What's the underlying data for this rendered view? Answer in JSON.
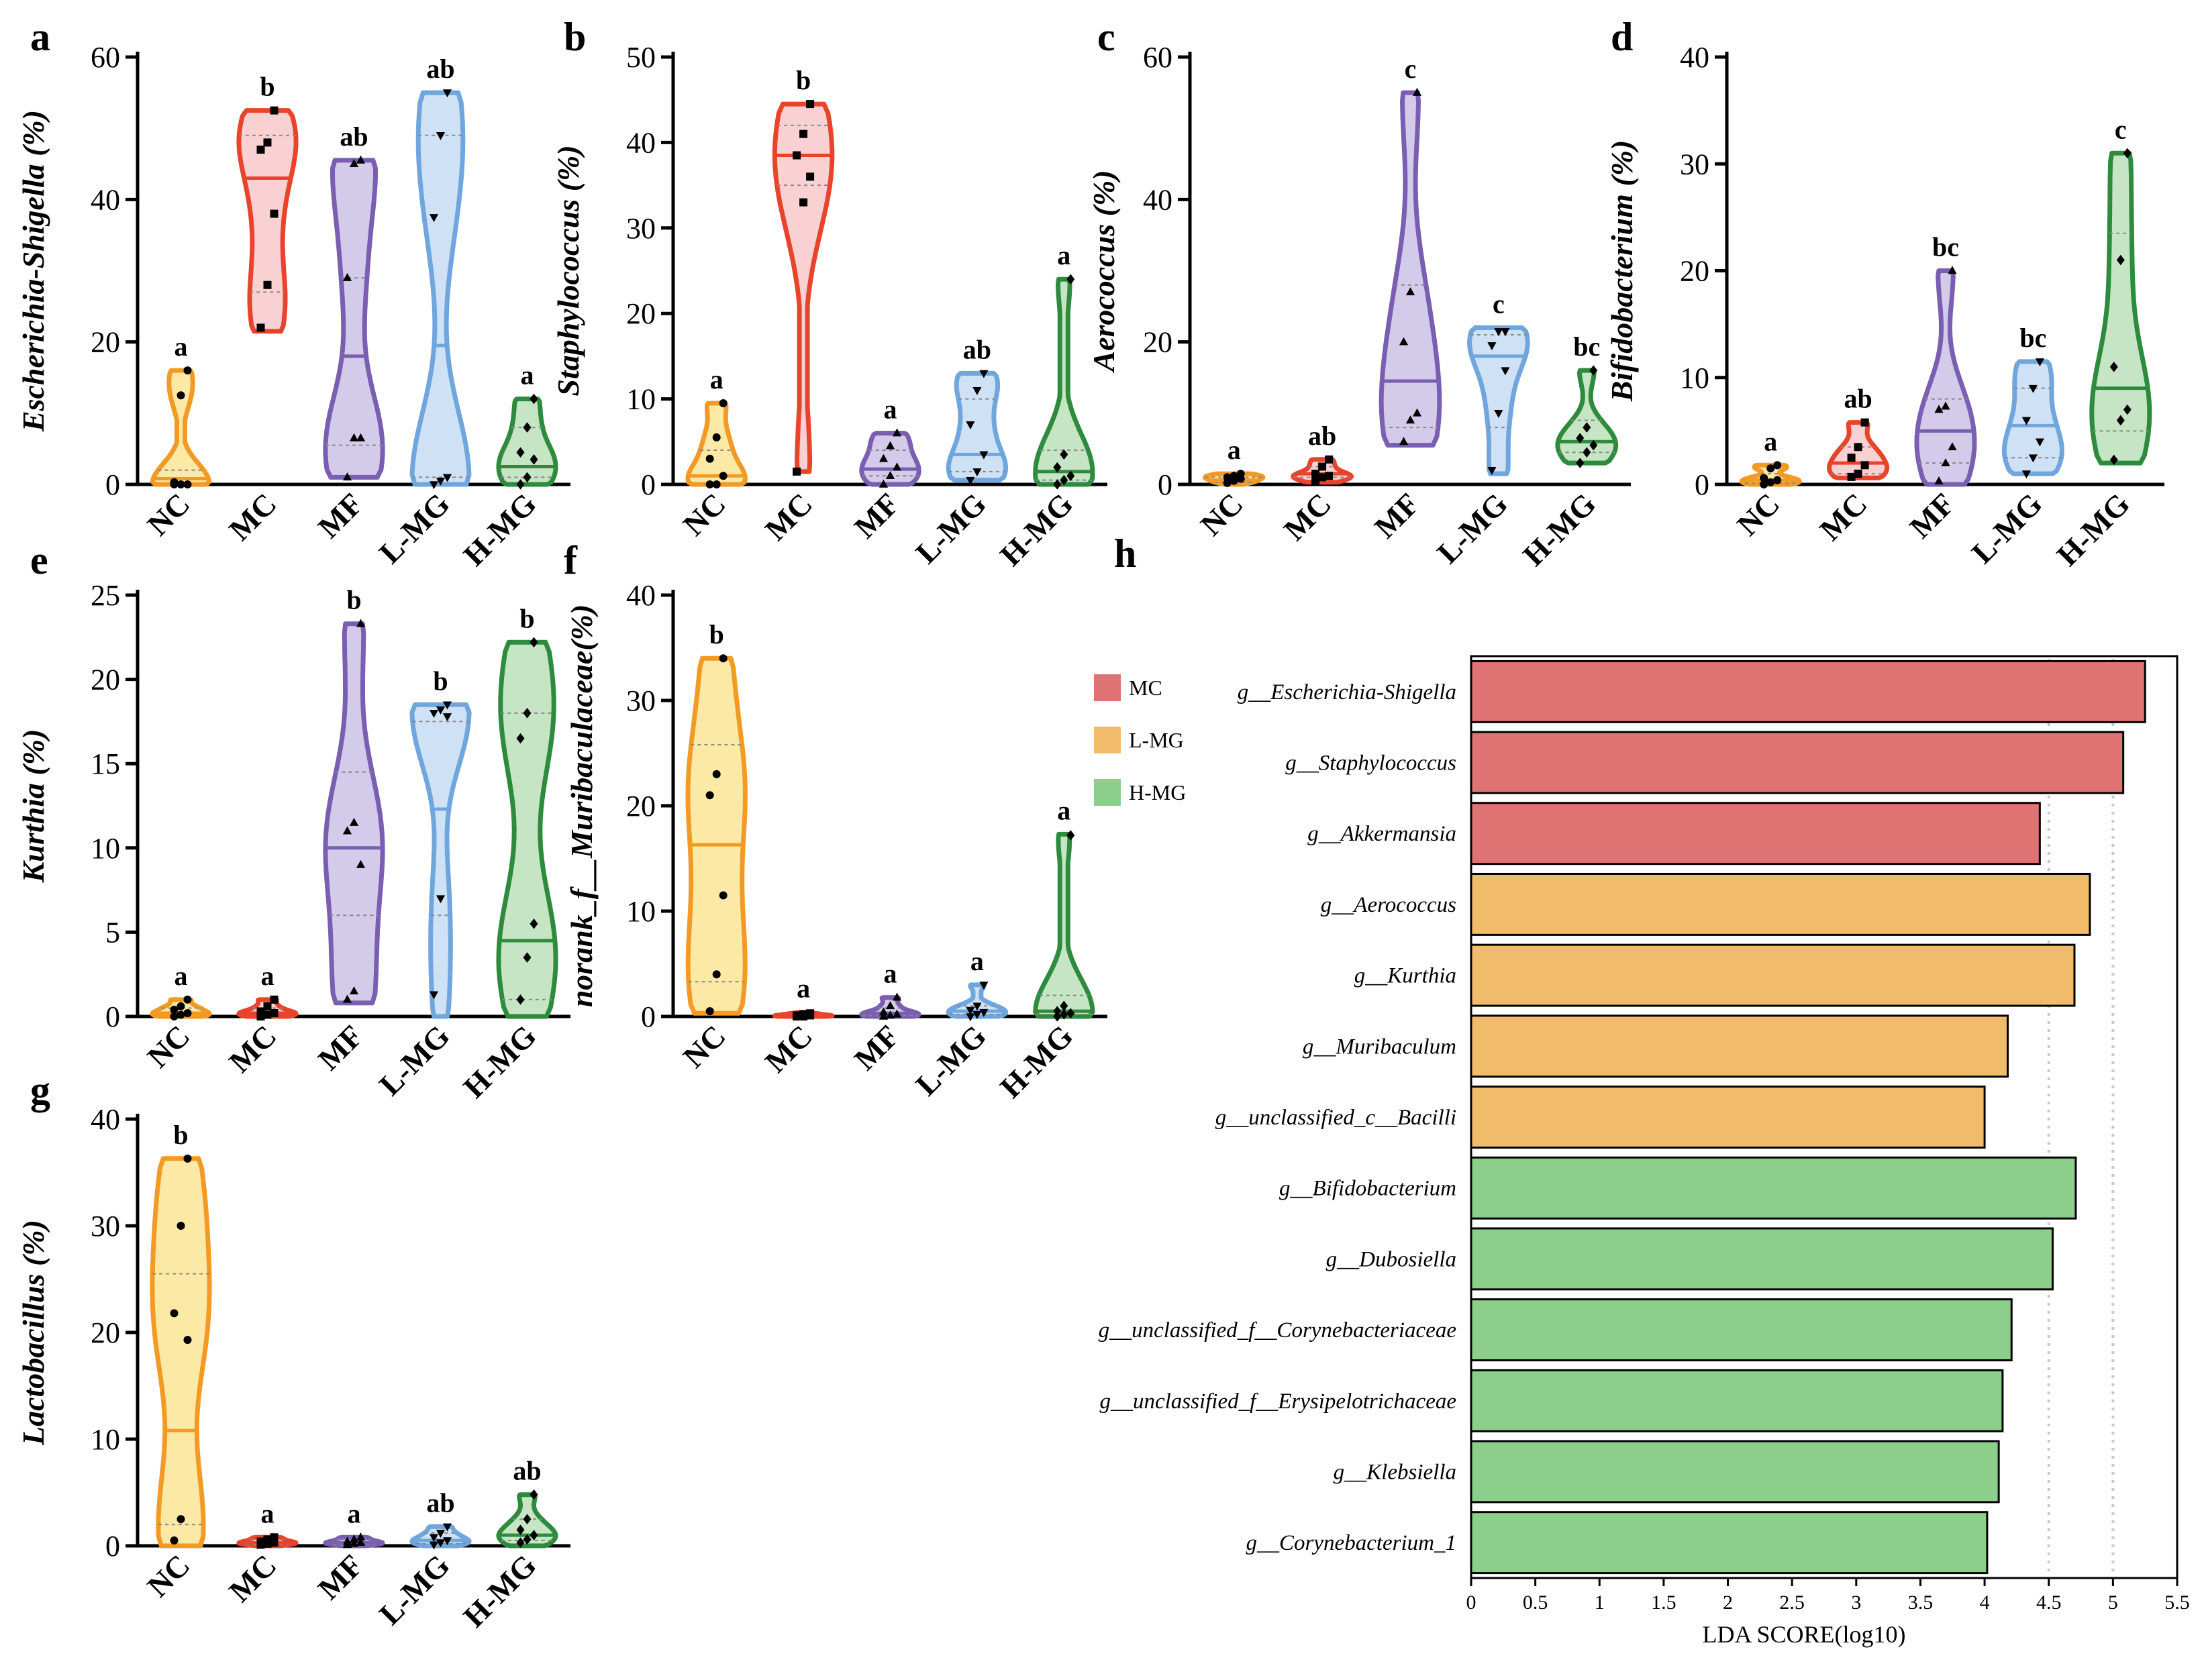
{
  "groups": [
    "NC",
    "MC",
    "MF",
    "L-MG",
    "H-MG"
  ],
  "colors": {
    "NC": {
      "stroke": "#f39a25",
      "fill": "#fde9a6"
    },
    "MC": {
      "stroke": "#e8442c",
      "fill": "#fad1d3"
    },
    "MF": {
      "stroke": "#7a5eb1",
      "fill": "#d4cbea"
    },
    "L-MG": {
      "stroke": "#6fa6dd",
      "fill": "#cfe1f4"
    },
    "H-MG": {
      "stroke": "#2e8b3e",
      "fill": "#c6e5c4"
    }
  },
  "chart_data": [
    {
      "panel": "a",
      "type": "violin",
      "ylabel": "Escherichia-Shigella (%)",
      "ylim": [
        0,
        60
      ],
      "yticks": [
        0,
        20,
        40,
        60
      ],
      "categories": [
        "NC",
        "MC",
        "MF",
        "L-MG",
        "H-MG"
      ],
      "series": [
        {
          "group": "NC",
          "min": 0,
          "max": 16,
          "median": 0.8,
          "q1": 0,
          "q3": 2,
          "points": [
            0,
            0,
            0,
            0.3,
            12.5,
            16
          ],
          "letter": "a"
        },
        {
          "group": "MC",
          "min": 21.5,
          "max": 52.5,
          "median": 43,
          "q1": 27,
          "q3": 49,
          "points": [
            22,
            28,
            38,
            47,
            48,
            52.5
          ],
          "letter": "b"
        },
        {
          "group": "MF",
          "min": 1,
          "max": 45.5,
          "median": 18,
          "q1": 5.5,
          "q3": 29,
          "points": [
            1,
            6.5,
            6.5,
            29,
            45,
            45.5
          ],
          "letter": "ab"
        },
        {
          "group": "L-MG",
          "min": 0,
          "max": 55,
          "median": 19.5,
          "q1": 1,
          "q3": 49,
          "points": [
            0,
            0.5,
            1,
            37.5,
            49,
            55
          ],
          "letter": "ab"
        },
        {
          "group": "H-MG",
          "min": 0,
          "max": 12,
          "median": 2.5,
          "q1": 1,
          "q3": 8,
          "points": [
            0,
            1,
            3.5,
            4.5,
            8,
            12
          ],
          "letter": "a"
        }
      ]
    },
    {
      "panel": "b",
      "type": "violin",
      "ylabel": "Staphylococcus (%)",
      "ylim": [
        0,
        50
      ],
      "yticks": [
        0,
        10,
        20,
        30,
        40,
        50
      ],
      "categories": [
        "NC",
        "MC",
        "MF",
        "L-MG",
        "H-MG"
      ],
      "series": [
        {
          "group": "NC",
          "min": 0,
          "max": 9.5,
          "median": 1,
          "q1": 0,
          "q3": 4,
          "points": [
            0,
            0,
            1,
            3,
            5.5,
            9.5
          ],
          "letter": "a"
        },
        {
          "group": "MC",
          "min": 1.5,
          "max": 44.5,
          "median": 38.5,
          "q1": 35,
          "q3": 42,
          "points": [
            1.5,
            33,
            36,
            38.5,
            41,
            44.5
          ],
          "letter": "b"
        },
        {
          "group": "MF",
          "min": 0,
          "max": 6,
          "median": 1.8,
          "q1": 1,
          "q3": 4,
          "points": [
            0,
            1,
            2,
            3,
            4.5,
            6
          ],
          "letter": "a"
        },
        {
          "group": "L-MG",
          "min": 0.5,
          "max": 13,
          "median": 3.5,
          "q1": 1.5,
          "q3": 10,
          "points": [
            0.5,
            1.5,
            3.5,
            7,
            11,
            13
          ],
          "letter": "ab"
        },
        {
          "group": "H-MG",
          "min": 0,
          "max": 24,
          "median": 1.5,
          "q1": 0.5,
          "q3": 4,
          "points": [
            0,
            0.5,
            1,
            2,
            3.5,
            24
          ],
          "letter": "a"
        }
      ]
    },
    {
      "panel": "c",
      "type": "violin",
      "ylabel": "Aerococcus (%)",
      "ylim": [
        0,
        60
      ],
      "yticks": [
        0,
        20,
        40,
        60
      ],
      "categories": [
        "NC",
        "MC",
        "MF",
        "L-MG",
        "H-MG"
      ],
      "series": [
        {
          "group": "NC",
          "min": 0,
          "max": 1.5,
          "median": 0.6,
          "q1": 0.3,
          "q3": 1,
          "points": [
            0.2,
            0.5,
            0.8,
            1,
            1.2,
            1.5
          ],
          "letter": "a"
        },
        {
          "group": "MC",
          "min": 0.3,
          "max": 3.5,
          "median": 1.5,
          "q1": 1,
          "q3": 2.5,
          "points": [
            0.5,
            1,
            1.2,
            1.5,
            2.5,
            3.5
          ],
          "letter": "ab"
        },
        {
          "group": "MF",
          "min": 5.5,
          "max": 55,
          "median": 14.5,
          "q1": 8,
          "q3": 28,
          "points": [
            6,
            9,
            10,
            20,
            27,
            55
          ],
          "letter": "c"
        },
        {
          "group": "L-MG",
          "min": 1.5,
          "max": 22,
          "median": 18,
          "q1": 8,
          "q3": 21,
          "points": [
            2,
            10,
            16,
            19.5,
            21.5,
            21.5
          ],
          "letter": "c"
        },
        {
          "group": "H-MG",
          "min": 3,
          "max": 16,
          "median": 6,
          "q1": 4.5,
          "q3": 9,
          "points": [
            3,
            4.5,
            5.5,
            6.5,
            8,
            16
          ],
          "letter": "bc"
        }
      ]
    },
    {
      "panel": "d",
      "type": "violin",
      "ylabel": "Bifidobacterium (%)",
      "ylim": [
        0,
        40
      ],
      "yticks": [
        0,
        10,
        20,
        30,
        40
      ],
      "categories": [
        "NC",
        "MC",
        "MF",
        "L-MG",
        "H-MG"
      ],
      "series": [
        {
          "group": "NC",
          "min": 0,
          "max": 1.8,
          "median": 0.4,
          "q1": 0.1,
          "q3": 1,
          "points": [
            0,
            0.2,
            0.4,
            0.6,
            1.5,
            1.8
          ],
          "letter": "a"
        },
        {
          "group": "MC",
          "min": 0.6,
          "max": 5.8,
          "median": 2,
          "q1": 1,
          "q3": 3.5,
          "points": [
            0.7,
            1,
            1.8,
            2.5,
            3.5,
            5.8
          ],
          "letter": "ab"
        },
        {
          "group": "MF",
          "min": 0,
          "max": 20,
          "median": 5,
          "q1": 2,
          "q3": 8,
          "points": [
            0.3,
            2,
            3.5,
            7,
            7.3,
            20
          ],
          "letter": "bc"
        },
        {
          "group": "L-MG",
          "min": 1,
          "max": 11.5,
          "median": 5.5,
          "q1": 2.5,
          "q3": 9,
          "points": [
            1,
            2.5,
            4,
            6,
            9,
            11.5
          ],
          "letter": "bc"
        },
        {
          "group": "H-MG",
          "min": 2,
          "max": 31,
          "median": 9,
          "q1": 5,
          "q3": 23.5,
          "points": [
            2.3,
            6,
            7,
            11,
            21,
            31
          ],
          "letter": "c"
        }
      ]
    },
    {
      "panel": "e",
      "type": "violin",
      "ylabel": "Kurthia (%)",
      "ylim": [
        0,
        25
      ],
      "yticks": [
        0,
        5,
        10,
        15,
        20,
        25
      ],
      "categories": [
        "NC",
        "MC",
        "MF",
        "L-MG",
        "H-MG"
      ],
      "series": [
        {
          "group": "NC",
          "min": 0,
          "max": 1,
          "median": 0.2,
          "q1": 0,
          "q3": 0.5,
          "points": [
            0,
            0.1,
            0.2,
            0.4,
            0.6,
            1
          ],
          "letter": "a"
        },
        {
          "group": "MC",
          "min": 0,
          "max": 1,
          "median": 0.2,
          "q1": 0,
          "q3": 0.5,
          "points": [
            0,
            0.1,
            0.2,
            0.3,
            0.6,
            1
          ],
          "letter": "a"
        },
        {
          "group": "MF",
          "min": 0.8,
          "max": 23.3,
          "median": 10,
          "q1": 6,
          "q3": 14.5,
          "points": [
            1,
            1.5,
            9,
            11,
            11.5,
            23.3
          ],
          "letter": "b"
        },
        {
          "group": "L-MG",
          "min": 0,
          "max": 18.5,
          "median": 12.3,
          "q1": 6,
          "q3": 17.5,
          "points": [
            1.3,
            7,
            17.8,
            18,
            18.2,
            18.5
          ],
          "letter": "b"
        },
        {
          "group": "H-MG",
          "min": 0,
          "max": 22.2,
          "median": 4.5,
          "q1": 1,
          "q3": 18,
          "points": [
            1,
            3.5,
            5.5,
            16.5,
            18,
            22.2
          ],
          "letter": "b"
        }
      ]
    },
    {
      "panel": "f",
      "type": "violin",
      "ylabel": "norank_f__Muribaculaceae(%)",
      "ylim": [
        0,
        40
      ],
      "yticks": [
        0,
        10,
        20,
        30,
        40
      ],
      "categories": [
        "NC",
        "MC",
        "MF",
        "L-MG",
        "H-MG"
      ],
      "series": [
        {
          "group": "NC",
          "min": 0.3,
          "max": 34,
          "median": 16.3,
          "q1": 3.3,
          "q3": 25.8,
          "points": [
            0.5,
            4,
            11.5,
            21,
            23,
            34
          ],
          "letter": "b"
        },
        {
          "group": "MC",
          "min": 0,
          "max": 0.4,
          "median": 0.1,
          "q1": 0,
          "q3": 0.2,
          "points": [
            0,
            0,
            0.1,
            0.1,
            0.2,
            0.3
          ],
          "letter": "a"
        },
        {
          "group": "MF",
          "min": 0,
          "max": 1.8,
          "median": 0.3,
          "q1": 0.1,
          "q3": 0.8,
          "points": [
            0,
            0.1,
            0.2,
            0.4,
            1,
            1.8
          ],
          "letter": "a"
        },
        {
          "group": "L-MG",
          "min": 0,
          "max": 3,
          "median": 0.5,
          "q1": 0.2,
          "q3": 1,
          "points": [
            0,
            0.2,
            0.4,
            0.6,
            1,
            3
          ],
          "letter": "a"
        },
        {
          "group": "H-MG",
          "min": 0,
          "max": 17.3,
          "median": 0.5,
          "q1": 0.2,
          "q3": 2,
          "points": [
            0,
            0.2,
            0.3,
            0.5,
            1,
            17.2
          ],
          "letter": "a"
        }
      ]
    },
    {
      "panel": "g",
      "type": "violin",
      "ylabel": "Lactobacillus (%)",
      "ylim": [
        0,
        40
      ],
      "yticks": [
        0,
        10,
        20,
        30,
        40
      ],
      "categories": [
        "NC",
        "MC",
        "MF",
        "L-MG",
        "H-MG"
      ],
      "series": [
        {
          "group": "NC",
          "min": 0,
          "max": 36.3,
          "median": 10.8,
          "q1": 2,
          "q3": 25.5,
          "points": [
            0.5,
            2.5,
            19.3,
            21.8,
            30,
            36.3
          ],
          "letter": "b"
        },
        {
          "group": "MC",
          "min": 0,
          "max": 0.8,
          "median": 0.3,
          "q1": 0.1,
          "q3": 0.6,
          "points": [
            0.1,
            0.2,
            0.3,
            0.4,
            0.6,
            0.8
          ],
          "letter": "a"
        },
        {
          "group": "MF",
          "min": 0,
          "max": 0.8,
          "median": 0.3,
          "q1": 0.1,
          "q3": 0.6,
          "points": [
            0.1,
            0.2,
            0.3,
            0.4,
            0.6,
            0.8
          ],
          "letter": "a"
        },
        {
          "group": "L-MG",
          "min": 0,
          "max": 1.8,
          "median": 0.5,
          "q1": 0.2,
          "q3": 1.2,
          "points": [
            0.1,
            0.3,
            0.5,
            0.8,
            1.2,
            1.8
          ],
          "letter": "ab"
        },
        {
          "group": "H-MG",
          "min": 0,
          "max": 4.8,
          "median": 1,
          "q1": 0.5,
          "q3": 2.5,
          "points": [
            0.3,
            0.6,
            1,
            1.5,
            2.5,
            4.8
          ],
          "letter": "ab"
        }
      ]
    },
    {
      "panel": "h",
      "type": "bar",
      "orientation": "horizontal",
      "xlabel": "LDA SCORE(log10)",
      "xlim": [
        0,
        5.5
      ],
      "xticks": [
        "0",
        "0.5",
        "1",
        "1.5",
        "2",
        "2.5",
        "3",
        "3.5",
        "4",
        "4.5",
        "5",
        "5.5"
      ],
      "gridlines": [
        4.5,
        5
      ],
      "legend": [
        {
          "label": "MC",
          "color": "#e07374"
        },
        {
          "label": "L-MG",
          "color": "#f1bb6c"
        },
        {
          "label": "H-MG",
          "color": "#8bcf8b"
        }
      ],
      "bars": [
        {
          "label": "g__Escherichia-Shigella",
          "value": 5.25,
          "group": "MC"
        },
        {
          "label": "g__Staphylococcus",
          "value": 5.08,
          "group": "MC"
        },
        {
          "label": "g__Akkermansia",
          "value": 4.43,
          "group": "MC"
        },
        {
          "label": "g__Aerococcus",
          "value": 4.82,
          "group": "L-MG"
        },
        {
          "label": "g__Kurthia",
          "value": 4.7,
          "group": "L-MG"
        },
        {
          "label": "g__Muribaculum",
          "value": 4.18,
          "group": "L-MG"
        },
        {
          "label": "g__unclassified_c__Bacilli",
          "value": 4.0,
          "group": "L-MG"
        },
        {
          "label": "g__Bifidobacterium",
          "value": 4.71,
          "group": "H-MG"
        },
        {
          "label": "g__Dubosiella",
          "value": 4.53,
          "group": "H-MG"
        },
        {
          "label": "g__unclassified_f__Corynebacteriaceae",
          "value": 4.21,
          "group": "H-MG"
        },
        {
          "label": "g__unclassified_f__Erysipelotrichaceae",
          "value": 4.14,
          "group": "H-MG"
        },
        {
          "label": "g__Klebsiella",
          "value": 4.11,
          "group": "H-MG"
        },
        {
          "label": "g__Corynebacterium_1",
          "value": 4.02,
          "group": "H-MG"
        }
      ]
    }
  ]
}
